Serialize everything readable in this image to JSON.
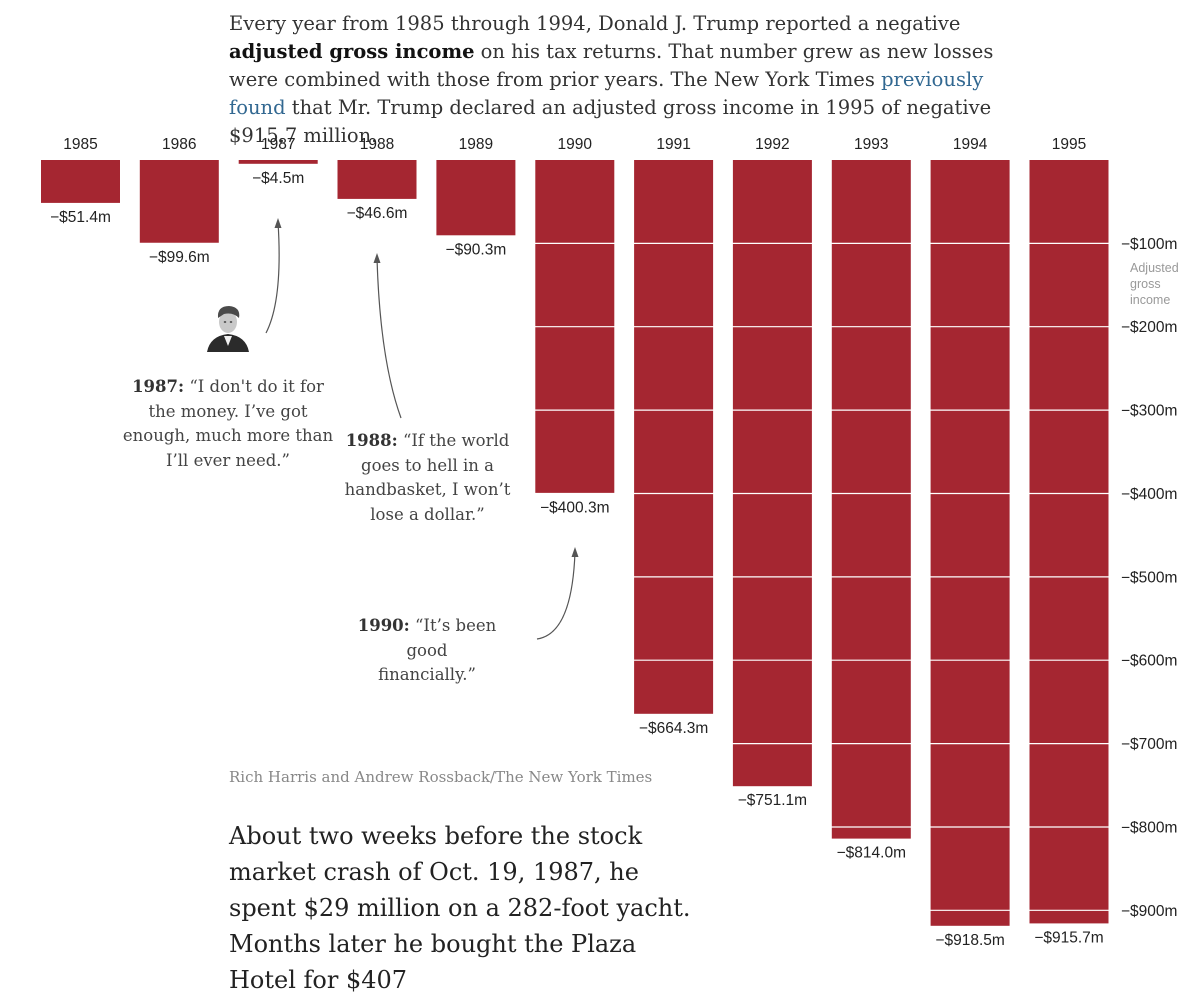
{
  "intro": {
    "part1": "Every year from 1985 through 1994, Donald J. Trump reported a negative ",
    "bold": "adjusted gross income",
    "part2": " on his tax returns. That number grew as new losses were combined with those from prior years. The New York Times ",
    "link": "previously found",
    "part3": " that Mr. Trump declared an adjusted gross income in 1995 of negative $915.7 million."
  },
  "chart_data": {
    "type": "bar",
    "categories": [
      "1985",
      "1986",
      "1987",
      "1988",
      "1989",
      "1990",
      "1991",
      "1992",
      "1993",
      "1994",
      "1995"
    ],
    "values": [
      -51.4,
      -99.6,
      -4.5,
      -46.6,
      -90.3,
      -400.3,
      -664.3,
      -751.1,
      -814.0,
      -918.5,
      -915.7
    ],
    "value_labels": [
      "−$51.4m",
      "−$99.6m",
      "−$4.5m",
      "−$46.6m",
      "−$90.3m",
      "−$400.3m",
      "−$664.3m",
      "−$751.1m",
      "−$814.0m",
      "−$918.5m",
      "−$915.7m"
    ],
    "ylabel": "Adjusted gross income",
    "yticks": [
      -100,
      -200,
      -300,
      -400,
      -500,
      -600,
      -700,
      -800,
      -900
    ],
    "ytick_labels": [
      "−$100m",
      "−$200m",
      "−$300m",
      "−$400m",
      "−$500m",
      "−$600m",
      "−$700m",
      "−$800m",
      "−$900m"
    ],
    "ylim": [
      0,
      -920
    ],
    "grid": true,
    "bar_color": "#a52631",
    "annotations": [
      {
        "year": "1987",
        "text": "“I don't do it for the money. I’ve got enough, much more than I’ll ever need.”"
      },
      {
        "year": "1988",
        "text": "“If the world goes to hell in a handbasket, I won’t lose a dollar.”"
      },
      {
        "year": "1990",
        "text": "“It’s been good financially.”"
      }
    ]
  },
  "quotes": {
    "q1987": {
      "year": "1987:",
      "line1": " “I don't do it for",
      "line2": "the money. I’ve got",
      "line3": "enough, much more than",
      "line4": "I’ll ever need.”"
    },
    "q1988": {
      "year": "1988:",
      "line1": " “If the world",
      "line2": "goes to hell in a",
      "line3": "handbasket, I won’t",
      "line4": "lose a dollar.”"
    },
    "q1990": {
      "year": "1990:",
      "line1": " “It’s been good",
      "line2": "financially.”"
    }
  },
  "credit": "Rich Harris and Andrew Rossback/The New York Times",
  "story": "About two weeks before the stock market crash of Oct. 19, 1987, he spent $29 million on a 282-foot yacht. Months later he bought the Plaza Hotel for $407",
  "icons": {
    "portrait": "trump-portrait-icon"
  },
  "colors": {
    "bar": "#a52631",
    "link": "#326891",
    "axis_note": "#999999"
  }
}
